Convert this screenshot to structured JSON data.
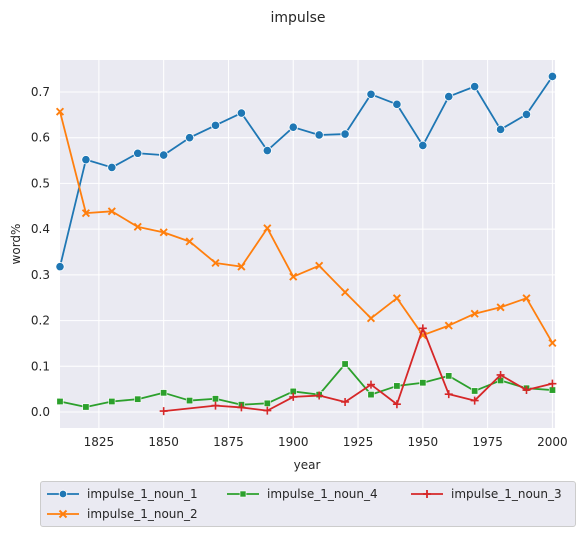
{
  "chart_data": {
    "type": "line",
    "title": "impulse",
    "xlabel": "year",
    "ylabel": "word%",
    "xlim": [
      1810,
      2001
    ],
    "ylim": [
      -0.035,
      0.77
    ],
    "xticks": [
      1825,
      1850,
      1875,
      1900,
      1925,
      1950,
      1975,
      2000
    ],
    "yticks": [
      0.0,
      0.1,
      0.2,
      0.3,
      0.4,
      0.5,
      0.6,
      0.7
    ],
    "xtick_labels": [
      "1825",
      "1850",
      "1875",
      "1900",
      "1925",
      "1950",
      "1975",
      "2000"
    ],
    "ytick_labels": [
      "0.0",
      "0.1",
      "0.2",
      "0.3",
      "0.4",
      "0.5",
      "0.6",
      "0.7"
    ],
    "grid": true,
    "legend_position": "below",
    "series": [
      {
        "name": "impulse_1_noun_1",
        "color": "#1f77b4",
        "marker": "circle",
        "x": [
          1810,
          1820,
          1830,
          1840,
          1850,
          1860,
          1870,
          1880,
          1890,
          1900,
          1910,
          1920,
          1930,
          1940,
          1950,
          1960,
          1970,
          1980,
          1990,
          2000
        ],
        "y": [
          0.318,
          0.552,
          0.535,
          0.566,
          0.562,
          0.6,
          0.627,
          0.654,
          0.572,
          0.623,
          0.606,
          0.608,
          0.695,
          0.673,
          0.583,
          0.69,
          0.712,
          0.618,
          0.651,
          0.734
        ]
      },
      {
        "name": "impulse_1_noun_2",
        "color": "#ff7f0e",
        "marker": "x",
        "x": [
          1810,
          1820,
          1830,
          1840,
          1850,
          1860,
          1870,
          1880,
          1890,
          1900,
          1910,
          1920,
          1930,
          1940,
          1950,
          1960,
          1970,
          1980,
          1990,
          2000
        ],
        "y": [
          0.657,
          0.435,
          0.439,
          0.405,
          0.393,
          0.373,
          0.326,
          0.318,
          0.402,
          0.296,
          0.32,
          0.262,
          0.205,
          0.249,
          0.168,
          0.189,
          0.215,
          0.229,
          0.249,
          0.151
        ]
      },
      {
        "name": "impulse_1_noun_4",
        "color": "#2ca02c",
        "marker": "square",
        "x": [
          1810,
          1820,
          1830,
          1840,
          1850,
          1860,
          1870,
          1880,
          1890,
          1900,
          1910,
          1920,
          1930,
          1940,
          1950,
          1960,
          1970,
          1980,
          1990,
          2000
        ],
        "y": [
          0.023,
          0.011,
          0.023,
          0.028,
          0.042,
          0.025,
          0.029,
          0.016,
          0.019,
          0.045,
          0.038,
          0.105,
          0.038,
          0.057,
          0.064,
          0.079,
          0.046,
          0.069,
          0.052,
          0.048
        ]
      },
      {
        "name": "impulse_1_noun_3",
        "color": "#d62728",
        "marker": "plus",
        "x": [
          1850,
          1870,
          1880,
          1890,
          1900,
          1910,
          1920,
          1930,
          1940,
          1950,
          1960,
          1970,
          1980,
          1990,
          2000
        ],
        "y": [
          0.002,
          0.014,
          0.01,
          0.003,
          0.033,
          0.036,
          0.022,
          0.06,
          0.017,
          0.183,
          0.039,
          0.025,
          0.081,
          0.048,
          0.062
        ]
      }
    ]
  }
}
